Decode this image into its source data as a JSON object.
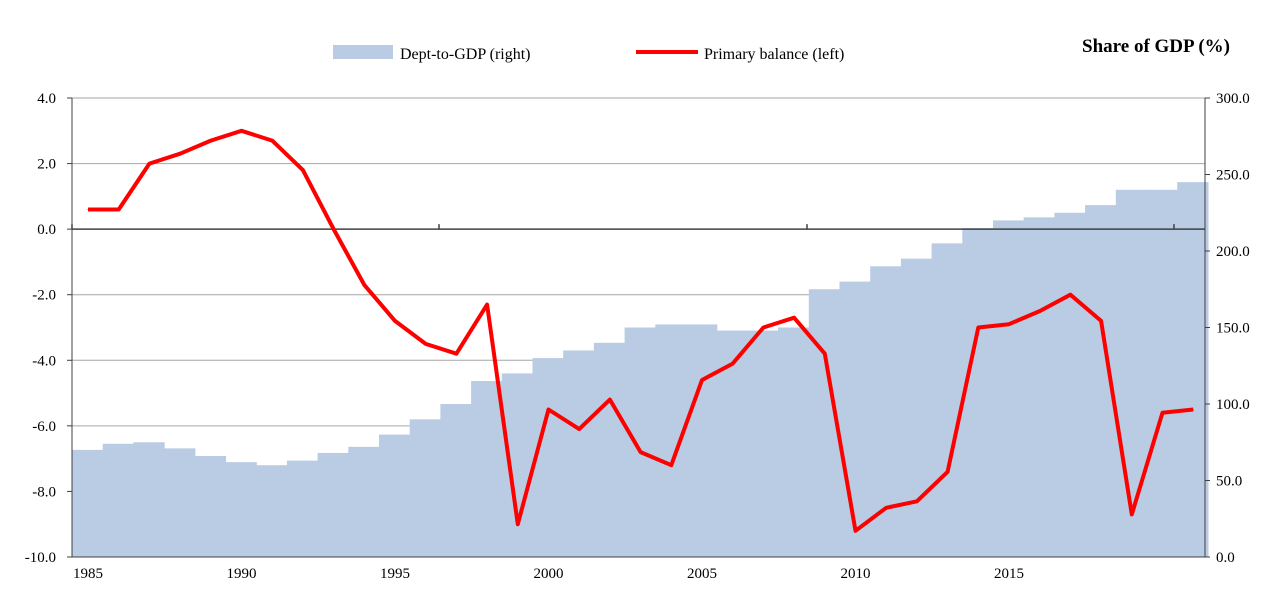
{
  "chart_data": {
    "type": "bar+line",
    "title": "Share of GDP (%)",
    "x": [
      1985,
      1986,
      1987,
      1988,
      1989,
      1990,
      1991,
      1992,
      1993,
      1994,
      1995,
      1996,
      1997,
      1998,
      1999,
      2000,
      2001,
      2002,
      2003,
      2004,
      2005,
      2006,
      2007,
      2008,
      2009,
      2010,
      2011,
      2012,
      2013,
      2014,
      2015,
      2016,
      2017,
      2018,
      2019,
      2020,
      2021
    ],
    "x_tick_labels": [
      "1985",
      "1990",
      "1995",
      "2000",
      "2005",
      "2010",
      "2015"
    ],
    "y_left_ticks": [
      "4.0",
      "2.0",
      "0.0",
      "-2.0",
      "-4.0",
      "-6.0",
      "-8.0",
      "-10.0"
    ],
    "y_right_ticks": [
      "300.0",
      "250.0",
      "200.0",
      "150.0",
      "100.0",
      "50.0",
      "0.0"
    ],
    "ylim_left": [
      -10,
      4
    ],
    "ylim_right": [
      0,
      300
    ],
    "grid": true,
    "legend_position": "top",
    "series": [
      {
        "name": "Dept-to-GDP (right)",
        "kind": "bar",
        "axis": "right",
        "color": "#b9cce4",
        "values": [
          70,
          74,
          75,
          71,
          66,
          62,
          60,
          63,
          68,
          72,
          80,
          90,
          100,
          115,
          120,
          130,
          135,
          140,
          150,
          152,
          152,
          148,
          148,
          150,
          175,
          180,
          190,
          195,
          205,
          215,
          220,
          222,
          225,
          230,
          240,
          240,
          245
        ]
      },
      {
        "name": "Primary balance (left)",
        "kind": "line",
        "axis": "left",
        "color": "#ff0000",
        "values": [
          0.6,
          0.6,
          2.0,
          2.3,
          2.7,
          3.0,
          2.7,
          1.8,
          0.0,
          -1.7,
          -2.8,
          -3.5,
          -3.8,
          -2.3,
          -9.0,
          -5.5,
          -6.1,
          -5.2,
          -6.8,
          -7.2,
          -4.6,
          -4.1,
          -3.0,
          -2.7,
          -3.8,
          -9.2,
          -8.5,
          -8.3,
          -7.4,
          -3.0,
          -2.9,
          -2.5,
          -2.0,
          -2.8,
          -8.7,
          -5.6,
          -5.5
        ]
      }
    ]
  }
}
